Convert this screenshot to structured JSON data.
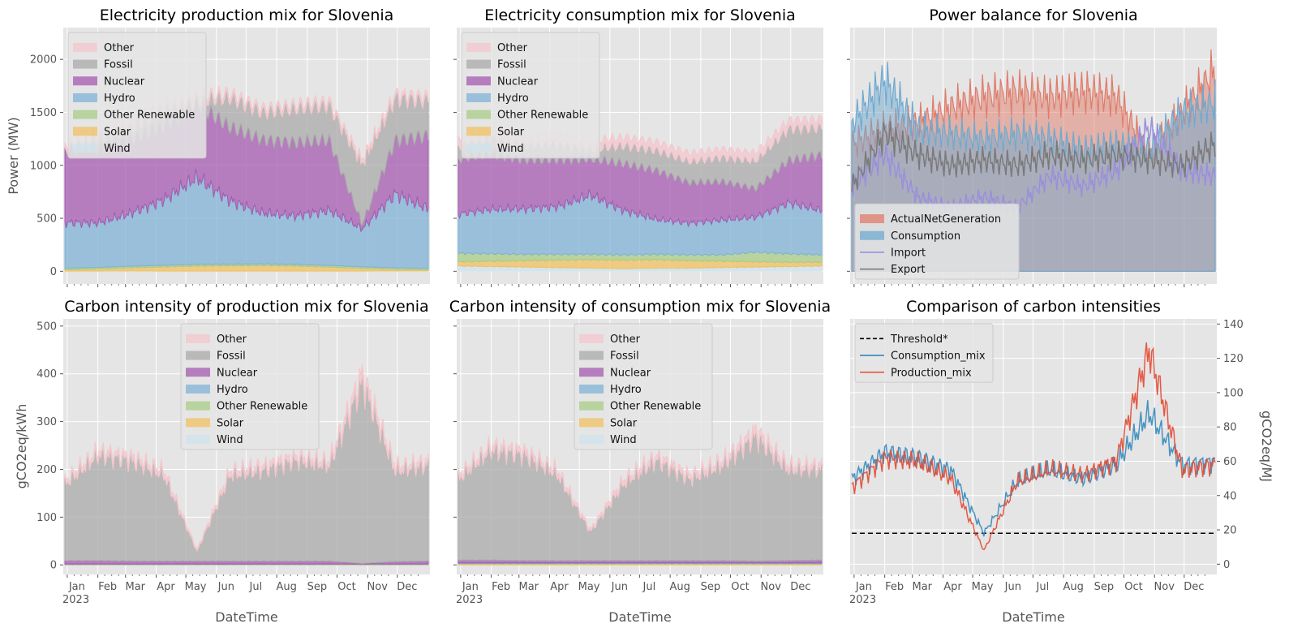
{
  "figure": {
    "ylabel_top": "Power (MW)",
    "ylabel_bottom": "gCO2eq/kWh",
    "ylabel_right": "gCO2eq/MJ",
    "xlabel": "DateTime",
    "month_labels": [
      "Jan",
      "Feb",
      "Mar",
      "Apr",
      "May",
      "Jun",
      "Jul",
      "Aug",
      "Sep",
      "Oct",
      "Nov",
      "Dec"
    ],
    "year_label": "2023",
    "colors": {
      "Other": "#f4c6cc",
      "Fossil": "#a9a9a9",
      "Nuclear": "#a45ab0",
      "Hydro": "#7fb2d6",
      "Other Renewable": "#a8cc86",
      "Solar": "#f0c060",
      "Wind": "#cfe3ec",
      "ActualNetGeneration": "#e07b6a",
      "Consumption": "#6fa9cf",
      "Import": "#9b8fdc",
      "Export": "#7a7a7a",
      "Threshold*": "#000000",
      "Consumption_mix": "#348abd",
      "Production_mix": "#e24a33"
    }
  },
  "chart_data": [
    {
      "type": "area",
      "title": "Electricity production mix for Slovenia",
      "xlabel": "DateTime",
      "ylabel": "Power (MW)",
      "ylim": [
        -120,
        2300
      ],
      "yticks": [
        0,
        500,
        1000,
        1500,
        2000
      ],
      "x": [
        "2023-01-15",
        "2023-02-15",
        "2023-03-15",
        "2023-04-15",
        "2023-05-15",
        "2023-06-15",
        "2023-07-15",
        "2023-08-15",
        "2023-09-15",
        "2023-10-15",
        "2023-11-15",
        "2023-12-15"
      ],
      "legend": [
        "Other",
        "Fossil",
        "Nuclear",
        "Hydro",
        "Other Renewable",
        "Solar",
        "Wind"
      ],
      "legend_loc": "upper left",
      "series": [
        {
          "name": "Wind",
          "values": [
            2,
            2,
            3,
            2,
            2,
            2,
            2,
            2,
            2,
            2,
            3,
            3
          ]
        },
        {
          "name": "Solar",
          "values": [
            12,
            20,
            30,
            40,
            48,
            50,
            52,
            48,
            38,
            25,
            15,
            10
          ]
        },
        {
          "name": "Other Renewable",
          "values": [
            15,
            15,
            15,
            15,
            15,
            15,
            15,
            15,
            15,
            15,
            15,
            15
          ]
        },
        {
          "name": "Hydro",
          "values": [
            430,
            420,
            500,
            620,
            820,
            600,
            480,
            460,
            520,
            360,
            700,
            560
          ]
        },
        {
          "name": "Nuclear",
          "values": [
            690,
            690,
            690,
            690,
            690,
            690,
            690,
            690,
            660,
            40,
            500,
            690
          ]
        },
        {
          "name": "Fossil",
          "values": [
            10,
            120,
            110,
            150,
            40,
            280,
            260,
            320,
            330,
            570,
            400,
            330
          ]
        },
        {
          "name": "Other",
          "values": [
            40,
            40,
            40,
            40,
            40,
            40,
            40,
            40,
            40,
            40,
            40,
            40
          ]
        }
      ]
    },
    {
      "type": "area",
      "title": "Electricity consumption mix for Slovenia",
      "xlabel": "DateTime",
      "ylabel": "",
      "ylim": [
        -120,
        2300
      ],
      "yticks": [
        0,
        500,
        1000,
        1500,
        2000
      ],
      "x": [
        "2023-01-15",
        "2023-02-15",
        "2023-03-15",
        "2023-04-15",
        "2023-05-15",
        "2023-06-15",
        "2023-07-15",
        "2023-08-15",
        "2023-09-15",
        "2023-10-15",
        "2023-11-15",
        "2023-12-15"
      ],
      "legend": [
        "Other",
        "Fossil",
        "Nuclear",
        "Hydro",
        "Other Renewable",
        "Solar",
        "Wind"
      ],
      "legend_loc": "upper left",
      "series": [
        {
          "name": "Wind",
          "values": [
            50,
            45,
            40,
            35,
            30,
            25,
            30,
            30,
            35,
            40,
            45,
            50
          ]
        },
        {
          "name": "Solar",
          "values": [
            40,
            50,
            60,
            70,
            80,
            80,
            80,
            70,
            60,
            50,
            40,
            35
          ]
        },
        {
          "name": "Other Renewable",
          "values": [
            80,
            70,
            60,
            55,
            50,
            50,
            50,
            55,
            60,
            90,
            80,
            70
          ]
        },
        {
          "name": "Hydro",
          "values": [
            370,
            420,
            430,
            450,
            560,
            420,
            330,
            300,
            330,
            330,
            480,
            420
          ]
        },
        {
          "name": "Nuclear",
          "values": [
            520,
            520,
            460,
            440,
            340,
            440,
            460,
            380,
            360,
            270,
            400,
            520
          ]
        },
        {
          "name": "Fossil",
          "values": [
            120,
            150,
            140,
            150,
            90,
            170,
            190,
            200,
            230,
            260,
            300,
            260
          ]
        },
        {
          "name": "Other",
          "values": [
            80,
            80,
            80,
            80,
            80,
            80,
            80,
            80,
            80,
            80,
            80,
            80
          ]
        }
      ]
    },
    {
      "type": "area",
      "title": "Power balance for Slovenia",
      "xlabel": "DateTime",
      "ylabel": "",
      "ylim": [
        -120,
        2300
      ],
      "yticks": [
        0,
        500,
        1000,
        1500,
        2000
      ],
      "x": [
        "2023-01-15",
        "2023-02-15",
        "2023-03-15",
        "2023-04-15",
        "2023-05-15",
        "2023-06-15",
        "2023-07-15",
        "2023-08-15",
        "2023-09-15",
        "2023-10-15",
        "2023-11-15",
        "2023-12-15"
      ],
      "legend": [
        "ActualNetGeneration",
        "Consumption",
        "Import",
        "Export"
      ],
      "legend_loc": "lower left",
      "series": [
        {
          "name": "ActualNetGeneration",
          "values": [
            1200,
            1350,
            1400,
            1550,
            1650,
            1700,
            1650,
            1700,
            1650,
            1100,
            1500,
            1900
          ]
        },
        {
          "name": "Consumption",
          "values": [
            1400,
            1800,
            1350,
            1300,
            1250,
            1300,
            1250,
            1150,
            1200,
            1150,
            1500,
            1600
          ]
        },
        {
          "name": "Import",
          "values": [
            800,
            1100,
            700,
            600,
            700,
            600,
            900,
            800,
            950,
            1350,
            950,
            900
          ]
        },
        {
          "name": "Export",
          "values": [
            800,
            1300,
            1100,
            1000,
            1050,
            1000,
            1100,
            1050,
            1100,
            1050,
            1000,
            1200
          ]
        }
      ]
    },
    {
      "type": "area",
      "title": "Carbon intensity of production mix for Slovenia",
      "xlabel": "DateTime",
      "ylabel": "gCO2eq/kWh",
      "ylim": [
        -20,
        515
      ],
      "yticks": [
        0,
        100,
        200,
        300,
        400,
        500
      ],
      "x": [
        "2023-01-15",
        "2023-02-15",
        "2023-03-15",
        "2023-04-15",
        "2023-05-15",
        "2023-06-15",
        "2023-07-15",
        "2023-08-15",
        "2023-09-15",
        "2023-10-15",
        "2023-11-15",
        "2023-12-15"
      ],
      "legend": [
        "Other",
        "Fossil",
        "Nuclear",
        "Hydro",
        "Other Renewable",
        "Solar",
        "Wind"
      ],
      "legend_loc": "upper center",
      "series": [
        {
          "name": "Wind",
          "values": [
            0,
            0,
            0,
            0,
            0,
            0,
            0,
            0,
            0,
            0,
            0,
            0
          ]
        },
        {
          "name": "Solar",
          "values": [
            1,
            1,
            1,
            1,
            1,
            1,
            1,
            1,
            1,
            1,
            1,
            1
          ]
        },
        {
          "name": "Other Renewable",
          "values": [
            0,
            0,
            0,
            0,
            0,
            0,
            0,
            0,
            0,
            0,
            0,
            0
          ]
        },
        {
          "name": "Hydro",
          "values": [
            1,
            1,
            1,
            1,
            1,
            1,
            1,
            1,
            1,
            1,
            1,
            1
          ]
        },
        {
          "name": "Nuclear",
          "values": [
            7,
            7,
            6,
            6,
            6,
            6,
            6,
            6,
            6,
            1,
            5,
            6
          ]
        },
        {
          "name": "Fossil",
          "values": [
            160,
            220,
            210,
            180,
            20,
            180,
            190,
            210,
            200,
            380,
            190,
            200
          ]
        },
        {
          "name": "Other",
          "values": [
            8,
            10,
            10,
            10,
            4,
            10,
            10,
            10,
            10,
            20,
            10,
            10
          ]
        }
      ]
    },
    {
      "type": "area",
      "title": "Carbon intensity of consumption mix for Slovenia",
      "xlabel": "DateTime",
      "ylabel": "",
      "ylim": [
        -20,
        515
      ],
      "yticks": [
        0,
        100,
        200,
        300,
        400,
        500
      ],
      "x": [
        "2023-01-15",
        "2023-02-15",
        "2023-03-15",
        "2023-04-15",
        "2023-05-15",
        "2023-06-15",
        "2023-07-15",
        "2023-08-15",
        "2023-09-15",
        "2023-10-15",
        "2023-11-15",
        "2023-12-15"
      ],
      "legend": [
        "Other",
        "Fossil",
        "Nuclear",
        "Hydro",
        "Other Renewable",
        "Solar",
        "Wind"
      ],
      "legend_loc": "upper center",
      "series": [
        {
          "name": "Wind",
          "values": [
            0,
            0,
            0,
            0,
            0,
            0,
            0,
            0,
            0,
            0,
            0,
            0
          ]
        },
        {
          "name": "Solar",
          "values": [
            2,
            2,
            2,
            2,
            2,
            2,
            2,
            2,
            2,
            2,
            2,
            2
          ]
        },
        {
          "name": "Other Renewable",
          "values": [
            1,
            1,
            1,
            1,
            1,
            1,
            1,
            1,
            1,
            1,
            1,
            1
          ]
        },
        {
          "name": "Hydro",
          "values": [
            1,
            1,
            1,
            1,
            1,
            1,
            1,
            1,
            1,
            1,
            1,
            1
          ]
        },
        {
          "name": "Nuclear",
          "values": [
            6,
            6,
            5,
            5,
            5,
            5,
            5,
            5,
            5,
            4,
            5,
            6
          ]
        },
        {
          "name": "Fossil",
          "values": [
            170,
            230,
            220,
            180,
            60,
            160,
            210,
            170,
            200,
            260,
            190,
            190
          ]
        },
        {
          "name": "Other",
          "values": [
            8,
            10,
            10,
            10,
            5,
            10,
            10,
            10,
            10,
            15,
            10,
            10
          ]
        }
      ]
    },
    {
      "type": "line",
      "title": "Comparison of carbon intensities",
      "xlabel": "DateTime",
      "ylabel": "gCO2eq/MJ",
      "ylim": [
        -6,
        143
      ],
      "yticks": [
        0,
        20,
        40,
        60,
        80,
        100,
        120,
        140
      ],
      "y_axis_side": "right",
      "x": [
        "2023-01-15",
        "2023-02-15",
        "2023-03-15",
        "2023-04-15",
        "2023-05-15",
        "2023-06-15",
        "2023-07-15",
        "2023-08-15",
        "2023-09-15",
        "2023-10-15",
        "2023-11-15",
        "2023-12-15"
      ],
      "legend": [
        "Threshold*",
        "Consumption_mix",
        "Production_mix"
      ],
      "legend_loc": "upper left",
      "series": [
        {
          "name": "Threshold*",
          "style": "dashed",
          "values": [
            18,
            18,
            18,
            18,
            18,
            18,
            18,
            18,
            18,
            18,
            18,
            18
          ]
        },
        {
          "name": "Consumption_mix",
          "values": [
            50,
            65,
            62,
            55,
            18,
            48,
            55,
            50,
            58,
            88,
            58,
            60
          ]
        },
        {
          "name": "Production_mix",
          "values": [
            45,
            62,
            60,
            50,
            8,
            48,
            55,
            52,
            60,
            125,
            55,
            58
          ]
        }
      ]
    }
  ]
}
